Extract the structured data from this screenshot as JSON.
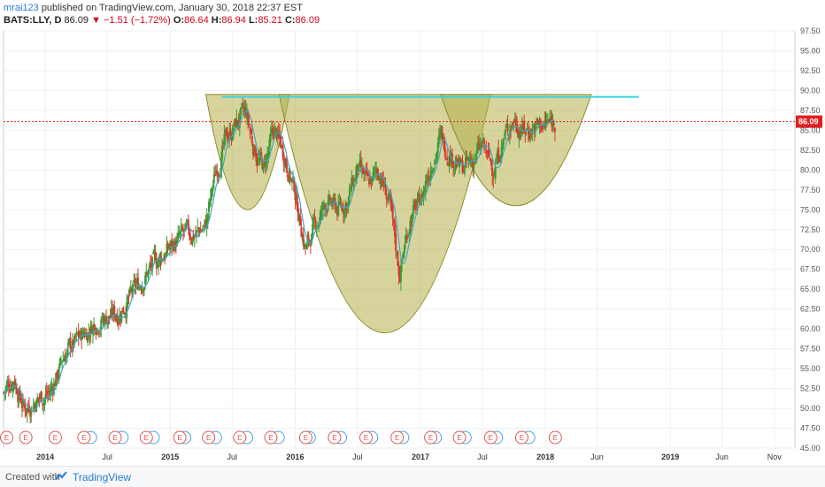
{
  "header": {
    "author": "mrai123",
    "published_text": "published on TradingView.com, January 30, 2018 22:37 EST",
    "symbol": "BATS:LLY, D",
    "last": "86.09",
    "change": "−1.51 (−1.72%)",
    "o_label": "O:",
    "o_value": "86.64",
    "h_label": "H:",
    "h_value": "86.94",
    "l_label": "L:",
    "l_value": "85.21",
    "c_label": "C:",
    "c_value": "86.09"
  },
  "footer": {
    "created_with": "Created with",
    "brand": "TradingView"
  },
  "colors": {
    "candle_up": "#3d9b35",
    "candle_down": "#d83a2e",
    "ma_line": "#4aa3c8",
    "cup_fill": "#b5b04a",
    "neckline": "#35d2e0",
    "price_line": "#e02020",
    "earnings_badge": "#e05555",
    "dividend_badge": "#4aa3e0"
  },
  "chart_data": {
    "type": "candlestick",
    "symbol": "BATS:LLY",
    "interval": "D",
    "y_axis": {
      "min": 45,
      "max": 97.5,
      "step": 2.5,
      "ticks": [
        "97.50",
        "95.00",
        "92.50",
        "90.00",
        "87.50",
        "85.00",
        "82.50",
        "80.00",
        "77.50",
        "75.00",
        "72.50",
        "70.00",
        "67.50",
        "65.00",
        "62.50",
        "60.00",
        "57.50",
        "55.00",
        "52.50",
        "50.00",
        "47.50",
        "45.00"
      ]
    },
    "x_axis": {
      "start": "2013-09-01",
      "end": "2019-12-31",
      "ticks": [
        {
          "label": "2014",
          "date": "2014-01-01",
          "bold": true
        },
        {
          "label": "Jul",
          "date": "2014-07-01",
          "bold": false
        },
        {
          "label": "2015",
          "date": "2015-01-01",
          "bold": true
        },
        {
          "label": "Jul",
          "date": "2015-07-01",
          "bold": false
        },
        {
          "label": "2016",
          "date": "2016-01-01",
          "bold": true
        },
        {
          "label": "Jul",
          "date": "2016-07-01",
          "bold": false
        },
        {
          "label": "2017",
          "date": "2017-01-01",
          "bold": true
        },
        {
          "label": "Jul",
          "date": "2017-07-01",
          "bold": false
        },
        {
          "label": "2018",
          "date": "2018-01-01",
          "bold": true
        },
        {
          "label": "Jun",
          "date": "2018-06-01",
          "bold": false
        },
        {
          "label": "2019",
          "date": "2019-01-01",
          "bold": true
        },
        {
          "label": "Jun",
          "date": "2019-06-01",
          "bold": false
        },
        {
          "label": "Nov",
          "date": "2019-11-01",
          "bold": false
        }
      ]
    },
    "current_price": 86.09,
    "current_price_label": "86.09",
    "price_path": [
      [
        "2013-09-01",
        52
      ],
      [
        "2013-10-01",
        54
      ],
      [
        "2013-11-01",
        50
      ],
      [
        "2013-12-01",
        51
      ],
      [
        "2014-01-15",
        52
      ],
      [
        "2014-03-01",
        57
      ],
      [
        "2014-04-15",
        59
      ],
      [
        "2014-06-01",
        61
      ],
      [
        "2014-08-01",
        62
      ],
      [
        "2014-09-15",
        64.5
      ],
      [
        "2014-11-01",
        67.5
      ],
      [
        "2014-12-15",
        69.5
      ],
      [
        "2015-02-01",
        71.5
      ],
      [
        "2015-03-15",
        72
      ],
      [
        "2015-04-15",
        73
      ],
      [
        "2015-05-15",
        80
      ],
      [
        "2015-06-15",
        84
      ],
      [
        "2015-07-15",
        86
      ],
      [
        "2015-08-10",
        87
      ],
      [
        "2015-09-01",
        83
      ],
      [
        "2015-10-01",
        80
      ],
      [
        "2015-11-01",
        85
      ],
      [
        "2015-12-01",
        82
      ],
      [
        "2016-01-01",
        77
      ],
      [
        "2016-02-01",
        70
      ],
      [
        "2016-03-01",
        73
      ],
      [
        "2016-04-01",
        76
      ],
      [
        "2016-05-01",
        75
      ],
      [
        "2016-06-01",
        76
      ],
      [
        "2016-07-01",
        80
      ],
      [
        "2016-08-01",
        78
      ],
      [
        "2016-09-01",
        80
      ],
      [
        "2016-10-01",
        76
      ],
      [
        "2016-11-01",
        67
      ],
      [
        "2016-12-01",
        74
      ],
      [
        "2017-01-01",
        76
      ],
      [
        "2017-02-01",
        81
      ],
      [
        "2017-03-01",
        84
      ],
      [
        "2017-04-01",
        82
      ],
      [
        "2017-05-01",
        80
      ],
      [
        "2017-06-01",
        81
      ],
      [
        "2017-07-01",
        83
      ],
      [
        "2017-08-01",
        80
      ],
      [
        "2017-09-01",
        84
      ],
      [
        "2017-10-01",
        86.5
      ],
      [
        "2017-11-01",
        85
      ],
      [
        "2017-12-01",
        85.5
      ],
      [
        "2018-01-29",
        86.09
      ]
    ],
    "annotations": {
      "cups": [
        {
          "left": "2015-04-15",
          "right": "2015-12-15",
          "top": 89.5,
          "bottom": 75
        },
        {
          "left": "2015-11-15",
          "right": "2017-07-25",
          "top": 89.5,
          "bottom": 59.5
        },
        {
          "left": "2017-03-01",
          "right": "2018-05-15",
          "top": 89.5,
          "bottom": 75.5
        }
      ],
      "neckline": {
        "from": "2015-06-01",
        "to": "2018-10-01",
        "price": 89.2
      }
    },
    "event_badges": {
      "earnings_label": "E",
      "earnings_dates": [
        "2013-09-10",
        "2013-11-05",
        "2014-01-30",
        "2014-04-24",
        "2014-07-24",
        "2014-10-23",
        "2015-01-29",
        "2015-04-23",
        "2015-07-23",
        "2015-10-22",
        "2016-02-01",
        "2016-04-25",
        "2016-07-26",
        "2016-10-25",
        "2017-01-31",
        "2017-04-25",
        "2017-07-25",
        "2017-10-24",
        "2018-01-30"
      ],
      "dividend_dates": [
        "2014-05-13",
        "2014-08-13",
        "2014-11-12",
        "2015-02-12",
        "2015-05-13",
        "2015-08-12",
        "2015-11-12",
        "2016-02-11",
        "2016-05-12",
        "2016-08-11",
        "2016-11-10",
        "2017-02-13",
        "2017-05-11",
        "2017-08-11",
        "2017-11-13"
      ]
    }
  }
}
